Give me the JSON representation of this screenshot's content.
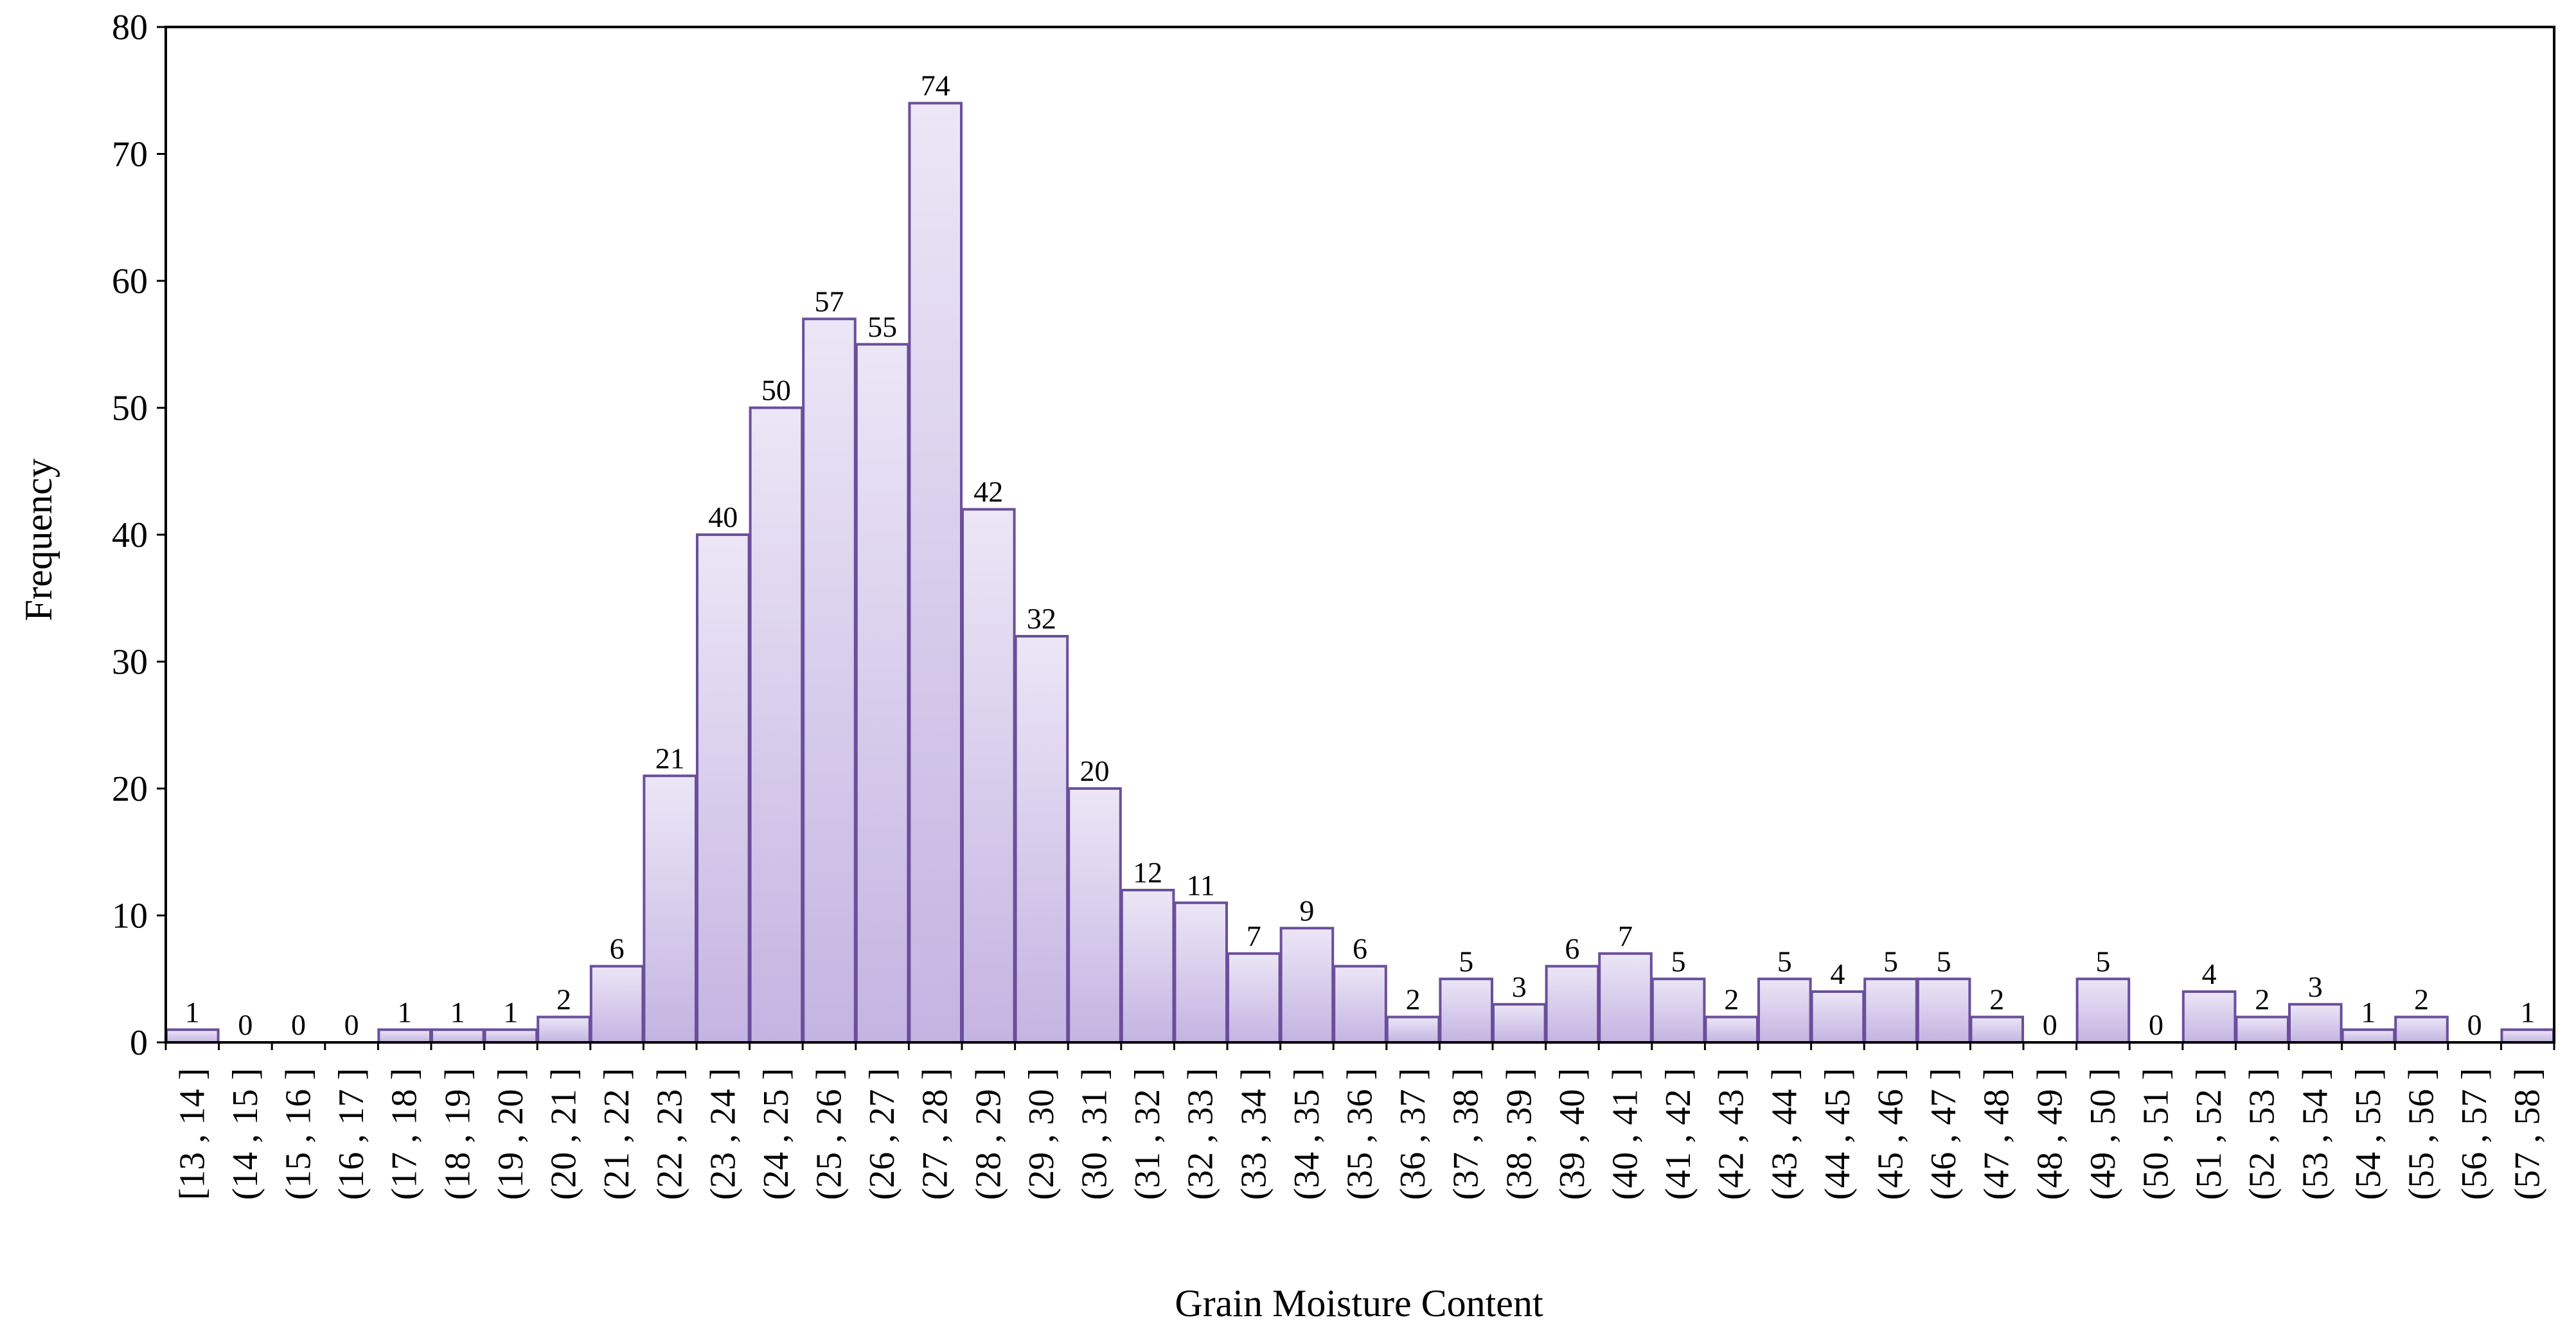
{
  "chart_data": {
    "type": "bar",
    "title": "",
    "xlabel": "Grain Moisture Content",
    "ylabel": "Frequency",
    "ylim": [
      0,
      80
    ],
    "yticks": [
      0,
      10,
      20,
      30,
      40,
      50,
      60,
      70,
      80
    ],
    "grid": false,
    "legend": "none",
    "categories": [
      "[13 , 14 ]",
      "(14 , 15 ]",
      "(15 , 16 ]",
      "(16 , 17 ]",
      "(17 , 18 ]",
      "(18 , 19 ]",
      "(19 , 20 ]",
      "(20 , 21 ]",
      "(21 , 22 ]",
      "(22 , 23 ]",
      "(23 , 24 ]",
      "(24 , 25 ]",
      "(25 , 26 ]",
      "(26 , 27 ]",
      "(27 , 28 ]",
      "(28 , 29 ]",
      "(29 , 30 ]",
      "(30 , 31 ]",
      "(31 , 32 ]",
      "(32 , 33 ]",
      "(33 , 34 ]",
      "(34 , 35 ]",
      "(35 , 36 ]",
      "(36 , 37 ]",
      "(37 , 38 ]",
      "(38 , 39 ]",
      "(39 , 40 ]",
      "(40 , 41 ]",
      "(41 , 42 ]",
      "(42 , 43 ]",
      "(43 , 44 ]",
      "(44 , 45 ]",
      "(45 , 46 ]",
      "(46 , 47 ]",
      "(47 , 48 ]",
      "(48 , 49 ]",
      "(49 , 50 ]",
      "(50 , 51 ]",
      "(51 , 52 ]",
      "(52 , 53 ]",
      "(53 , 54 ]",
      "(54 , 55 ]",
      "(55 , 56 ]",
      "(56 , 57 ]",
      "(57 , 58 ]"
    ],
    "values": [
      1,
      0,
      0,
      0,
      1,
      1,
      1,
      2,
      6,
      21,
      40,
      50,
      57,
      55,
      74,
      42,
      32,
      20,
      12,
      11,
      7,
      9,
      6,
      2,
      5,
      3,
      6,
      7,
      5,
      2,
      5,
      4,
      5,
      5,
      2,
      0,
      5,
      0,
      4,
      2,
      3,
      1,
      2,
      0,
      1
    ],
    "colors": {
      "bar_fill_top": "#ece6f6",
      "bar_fill_bottom": "#c4b4e2",
      "bar_stroke": "#6a4f9c",
      "axis": "#000000"
    }
  }
}
